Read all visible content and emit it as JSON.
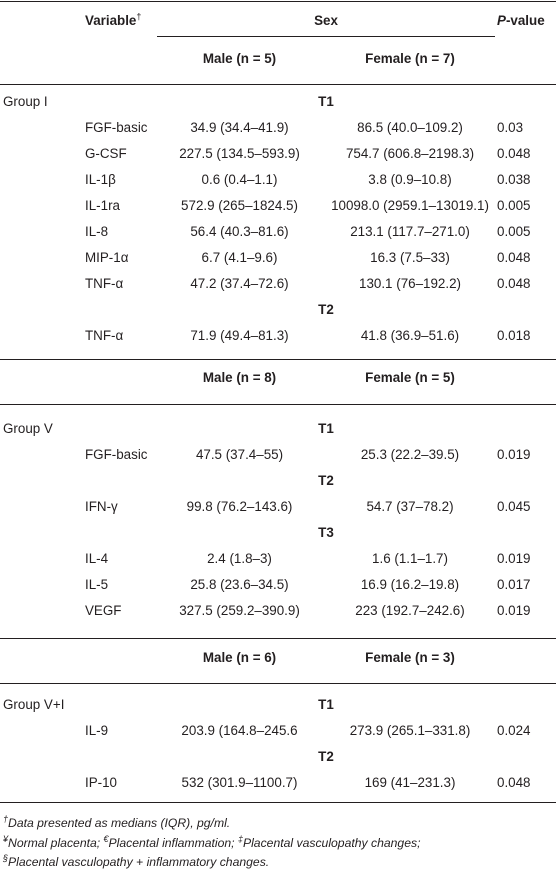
{
  "header": {
    "variable_label": "Variable",
    "variable_mark": "†",
    "sex_label": "Sex",
    "p_label_italic": "P",
    "p_label_rest": "-value",
    "male_label": "Male (n = 5)",
    "female_label": "Female (n = 7)"
  },
  "group1": {
    "name": "Group I",
    "t1": "T1",
    "t1_rows": [
      {
        "variable": "FGF-basic",
        "male": "34.9 (34.4–41.9)",
        "female": "86.5 (40.0–109.2)",
        "p": "0.03"
      },
      {
        "variable": "G-CSF",
        "male": "227.5 (134.5–593.9)",
        "female": "754.7 (606.8–2198.3)",
        "p": "0.048"
      },
      {
        "variable": "IL-1β",
        "male": "0.6 (0.4–1.1)",
        "female": "3.8 (0.9–10.8)",
        "p": "0.038"
      },
      {
        "variable": "IL-1ra",
        "male": "572.9 (265–1824.5)",
        "female": "10098.0 (2959.1–13019.1)",
        "p": "0.005"
      },
      {
        "variable": "IL-8",
        "male": "56.4 (40.3–81.6)",
        "female": "213.1 (117.7–271.0)",
        "p": "0.005"
      },
      {
        "variable": "MIP-1α",
        "male": "6.7 (4.1–9.6)",
        "female": "16.3 (7.5–33)",
        "p": "0.048"
      },
      {
        "variable": "TNF-α",
        "male": "47.2 (37.4–72.6)",
        "female": "130.1 (76–192.2)",
        "p": "0.048"
      }
    ],
    "t2": "T2",
    "t2_rows": [
      {
        "variable": "TNF-α",
        "male": "71.9 (49.4–81.3)",
        "female": "41.8 (36.9–51.6)",
        "p": "0.018"
      }
    ]
  },
  "group5": {
    "male_label": "Male (n = 8)",
    "female_label": "Female (n = 5)",
    "name": "Group V",
    "t1": "T1",
    "t1_rows": [
      {
        "variable": "FGF-basic",
        "male": "47.5 (37.4–55)",
        "female": "25.3 (22.2–39.5)",
        "p": "0.019"
      }
    ],
    "t2": "T2",
    "t2_rows": [
      {
        "variable": "IFN-γ",
        "male": "99.8 (76.2–143.6)",
        "female": "54.7 (37–78.2)",
        "p": "0.045"
      }
    ],
    "t3": "T3",
    "t3_rows": [
      {
        "variable": "IL-4",
        "male": "2.4 (1.8–3)",
        "female": "1.6 (1.1–1.7)",
        "p": "0.019"
      },
      {
        "variable": "IL-5",
        "male": "25.8 (23.6–34.5)",
        "female": "16.9 (16.2–19.8)",
        "p": "0.017"
      },
      {
        "variable": "VEGF",
        "male": "327.5 (259.2–390.9)",
        "female": "223 (192.7–242.6)",
        "p": "0.019"
      }
    ]
  },
  "group51": {
    "male_label": "Male (n = 6)",
    "female_label": "Female (n = 3)",
    "name": "Group V+I",
    "t1": "T1",
    "t1_rows": [
      {
        "variable": "IL-9",
        "male": "203.9 (164.8–245.6",
        "female": "273.9 (265.1–331.8)",
        "p": "0.024"
      }
    ],
    "t2": "T2",
    "t2_rows": [
      {
        "variable": "IP-10",
        "male": "532 (301.9–1100.7)",
        "female": "169 (41–231.3)",
        "p": "0.048"
      }
    ]
  },
  "footnotes": {
    "line1_mark": "†",
    "line1": "Data presented as medians (IQR), pg/ml.",
    "line2_mark_a": "¥",
    "line2_a": "Normal placenta; ",
    "line2_mark_b": "€",
    "line2_b": "Placental inflammation; ",
    "line2_mark_c": "‡",
    "line2_c": "Placental vasculopathy changes;",
    "line3_mark": "§",
    "line3": "Placental vasculopathy + inflammatory changes."
  }
}
